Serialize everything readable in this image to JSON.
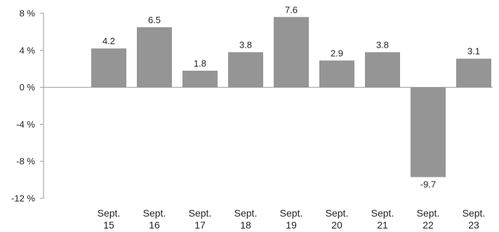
{
  "chart_data": {
    "type": "bar",
    "categories": [
      [
        "Sept.",
        "15"
      ],
      [
        "Sept.",
        "16"
      ],
      [
        "Sept.",
        "17"
      ],
      [
        "Sept.",
        "18"
      ],
      [
        "Sept.",
        "19"
      ],
      [
        "Sept.",
        "20"
      ],
      [
        "Sept.",
        "21"
      ],
      [
        "Sept.",
        "22"
      ],
      [
        "Sept.",
        "23"
      ]
    ],
    "values": [
      4.2,
      6.5,
      1.8,
      3.8,
      7.6,
      2.9,
      3.8,
      -9.7,
      3.1
    ],
    "value_labels": [
      "4.2",
      "6.5",
      "1.8",
      "3.8",
      "7.6",
      "2.9",
      "3.8",
      "-9.7",
      "3.1"
    ],
    "ylim": [
      -12,
      8
    ],
    "yticks": [
      8,
      4,
      0,
      -4,
      -8,
      -12
    ],
    "ytick_labels": [
      "8 %",
      "4 %",
      "0 %",
      "-4 %",
      "-8 %",
      "-12 %"
    ],
    "grid": false,
    "bar_color": "#959595",
    "axis_color": "#999999",
    "text_color": "#222222"
  }
}
